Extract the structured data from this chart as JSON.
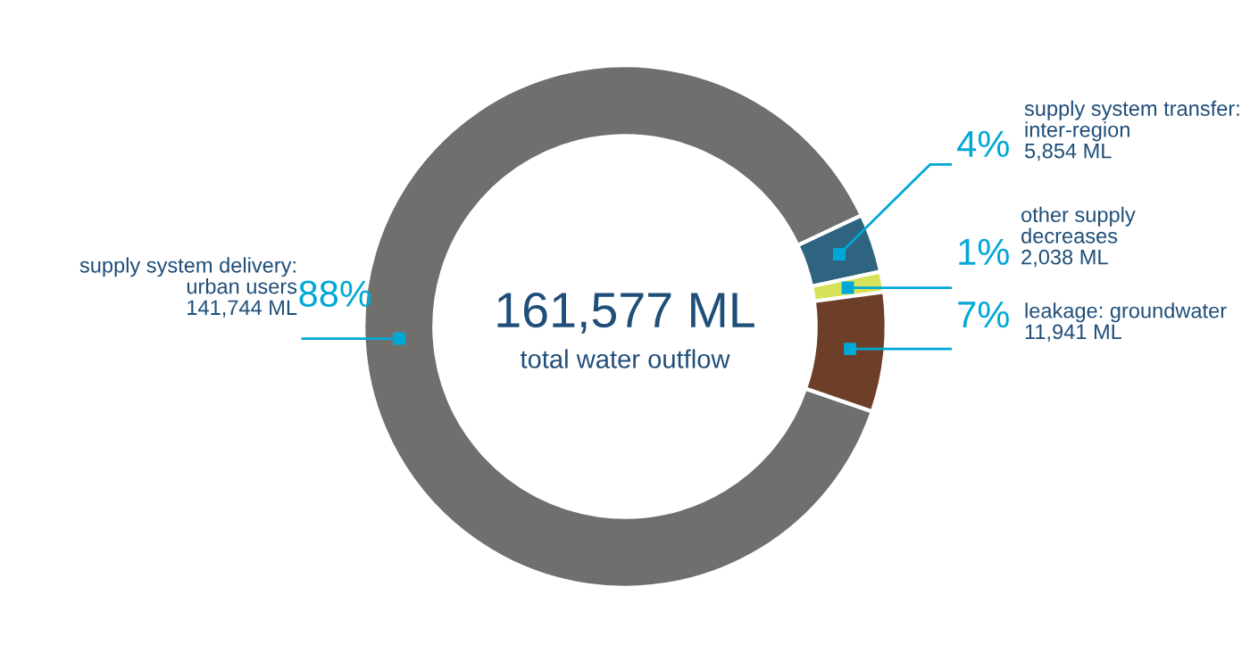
{
  "chart_data": {
    "type": "donut",
    "title": "161,577 ML",
    "subtitle": "total water outflow",
    "categories": [
      "supply system delivery:\nurban users",
      "supply system transfer:\ninter-region",
      "other supply\ndecreases",
      "leakage: groundwater"
    ],
    "values": [
      141744,
      5854,
      2038,
      11941
    ],
    "colors": [
      "#6f706e",
      "#2e6480",
      "#d6e35a",
      "#6e3f28"
    ],
    "value_labels": [
      "141,744 ML",
      "5,854 ML",
      "2,038 ML",
      "11,941 ML"
    ],
    "annotations": [
      "88%",
      "4%",
      "1%",
      "7%"
    ],
    "legend": false
  }
}
